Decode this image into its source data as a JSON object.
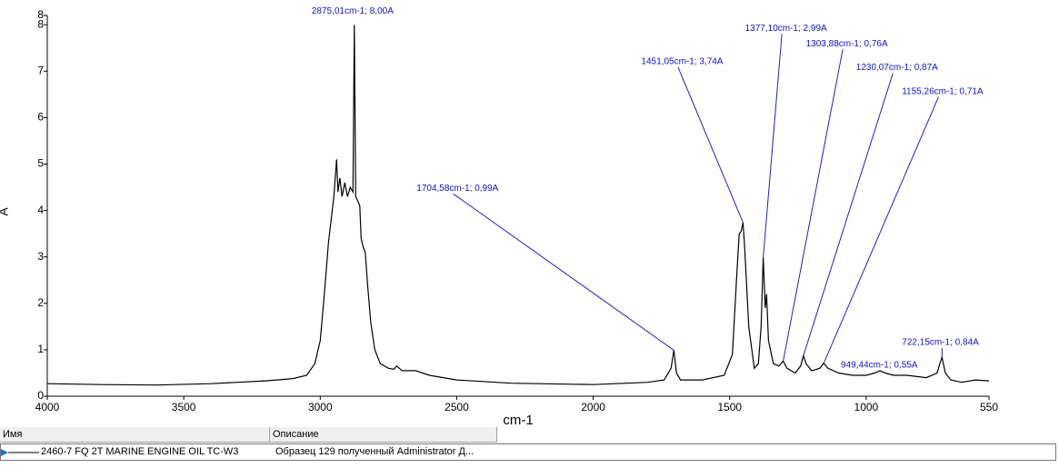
{
  "chart_data": {
    "type": "line",
    "xlabel": "cm-1",
    "ylabel": "A",
    "xlim": [
      4000,
      550
    ],
    "ylim": [
      0,
      8.2
    ],
    "xticks": [
      4000,
      3500,
      3000,
      2500,
      2000,
      1500,
      1000,
      550
    ],
    "yticks": [
      0,
      1,
      2,
      3,
      4,
      5,
      6,
      7,
      8,
      {
        "value": 8.2,
        "label": "8"
      }
    ],
    "series": [
      {
        "name": "2460-7 FQ 2T MARINE ENGINE OIL TC-W3",
        "color": "#000000",
        "x": [
          4000,
          3800,
          3600,
          3400,
          3200,
          3100,
          3050,
          3020,
          3000,
          2985,
          2970,
          2960,
          2950,
          2940,
          2935,
          2928,
          2920,
          2910,
          2900,
          2890,
          2880,
          2875.01,
          2870,
          2862,
          2855,
          2850,
          2842,
          2835,
          2825,
          2815,
          2800,
          2780,
          2750,
          2730,
          2720,
          2700,
          2650,
          2600,
          2500,
          2300,
          2000,
          1800,
          1740,
          1715,
          1704.58,
          1695,
          1680,
          1600,
          1520,
          1490,
          1475,
          1465,
          1458,
          1451.05,
          1445,
          1430,
          1410,
          1395,
          1385,
          1377.1,
          1370,
          1365,
          1358,
          1340,
          1320,
          1303.88,
          1290,
          1260,
          1240,
          1230.07,
          1220,
          1200,
          1170,
          1155.26,
          1140,
          1100,
          1050,
          1000,
          970,
          949.44,
          930,
          900,
          850,
          780,
          740,
          730,
          722.15,
          710,
          690,
          650,
          600,
          550
        ],
        "values": [
          0.27,
          0.25,
          0.24,
          0.27,
          0.33,
          0.38,
          0.45,
          0.7,
          1.2,
          2.2,
          3.3,
          3.8,
          4.3,
          5.1,
          4.4,
          4.7,
          4.3,
          4.6,
          4.3,
          4.5,
          4.4,
          8.0,
          4.3,
          4.2,
          4.1,
          3.4,
          3.2,
          3.1,
          2.3,
          1.6,
          1.0,
          0.7,
          0.6,
          0.58,
          0.65,
          0.55,
          0.55,
          0.45,
          0.35,
          0.28,
          0.25,
          0.3,
          0.35,
          0.6,
          0.99,
          0.5,
          0.35,
          0.35,
          0.45,
          0.9,
          2.5,
          3.5,
          3.55,
          3.74,
          3.2,
          1.5,
          0.6,
          0.7,
          1.5,
          2.99,
          1.9,
          2.2,
          1.2,
          0.7,
          0.65,
          0.76,
          0.6,
          0.5,
          0.65,
          0.87,
          0.7,
          0.55,
          0.6,
          0.71,
          0.6,
          0.5,
          0.45,
          0.45,
          0.5,
          0.55,
          0.5,
          0.45,
          0.45,
          0.4,
          0.5,
          0.7,
          0.84,
          0.5,
          0.35,
          0.3,
          0.35,
          0.33
        ]
      }
    ],
    "annotations": [
      {
        "text": "2875,01cm-1; 8,00A",
        "x": 2875.01,
        "y": 8.0
      },
      {
        "text": "1704,58cm-1; 0,99A",
        "x": 1704.58,
        "y": 0.99
      },
      {
        "text": "1451,05cm-1; 3,74A",
        "x": 1451.05,
        "y": 3.74
      },
      {
        "text": "1377,10cm-1; 2,99A",
        "x": 1377.1,
        "y": 2.99
      },
      {
        "text": "1303,88cm-1; 0,76A",
        "x": 1303.88,
        "y": 0.76
      },
      {
        "text": "1230,07cm-1; 0,87A",
        "x": 1230.07,
        "y": 0.87
      },
      {
        "text": "1155,26cm-1; 0,71A",
        "x": 1155.26,
        "y": 0.71
      },
      {
        "text": "949,44cm-1; 0,55A",
        "x": 949.44,
        "y": 0.55
      },
      {
        "text": "722,15cm-1; 0,84A",
        "x": 722.15,
        "y": 0.84
      }
    ]
  },
  "table": {
    "headers": [
      "Имя",
      "Описание"
    ],
    "rows": [
      [
        "2460-7 FQ 2T MARINE ENGINE OIL TC-W3",
        "Образец 129 полученный Administrator Д..."
      ]
    ]
  }
}
